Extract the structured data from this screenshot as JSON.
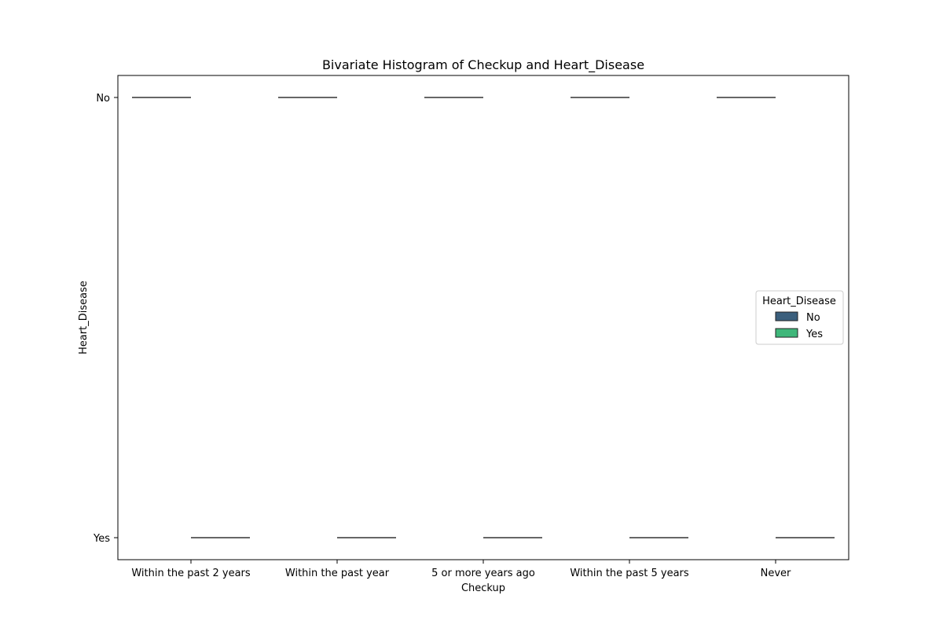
{
  "chart_data": {
    "type": "histogram",
    "title": "Bivariate Histogram of Checkup and Heart_Disease",
    "xlabel": "Checkup",
    "ylabel": "Heart_Disease",
    "categories": [
      "Within the past 2 years",
      "Within the past year",
      "5 or more years ago",
      "Within the past 5 years",
      "Never"
    ],
    "y_categories": [
      "No",
      "Yes"
    ],
    "hue_levels": [
      "No",
      "Yes"
    ],
    "series": [
      {
        "name": "No",
        "category_y": "No",
        "color": "#3b5f7d",
        "present": [
          1,
          1,
          1,
          1,
          1
        ]
      },
      {
        "name": "Yes",
        "category_y": "Yes",
        "color": "#3fb77a",
        "present": [
          1,
          1,
          1,
          1,
          1
        ]
      }
    ],
    "legend": {
      "title": "Heart_Disease",
      "entries": [
        "No",
        "Yes"
      ],
      "placement": "right"
    },
    "grid": false,
    "colors": {
      "no": "#3b5f7d",
      "yes": "#3fb77a",
      "mark_line": "#333333"
    }
  }
}
